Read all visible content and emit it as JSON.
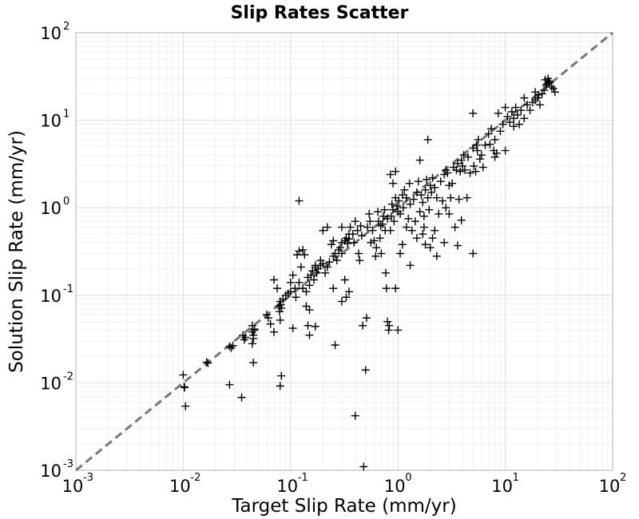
{
  "chart_data": {
    "type": "scatter",
    "title": "Slip Rates Scatter",
    "xlabel": "Target Slip Rate (mm/yr)",
    "ylabel": "Solution Slip Rate (mm/yr)",
    "xscale": "log",
    "yscale": "log",
    "xlim": [
      0.001,
      100
    ],
    "ylim": [
      0.001,
      100
    ],
    "grid": true,
    "marker": "plus",
    "marker_color": "#000000",
    "reference_line": {
      "style": "dashed",
      "color": "#777777",
      "from": [
        0.001,
        0.001
      ],
      "to": [
        100,
        100
      ]
    },
    "x_ticks": [
      {
        "value": 0.001,
        "base": "10",
        "exp": "-3"
      },
      {
        "value": 0.01,
        "base": "10",
        "exp": "-2"
      },
      {
        "value": 0.1,
        "base": "10",
        "exp": "-1"
      },
      {
        "value": 1,
        "base": "10",
        "exp": "0"
      },
      {
        "value": 10,
        "base": "10",
        "exp": "1"
      },
      {
        "value": 100,
        "base": "10",
        "exp": "2"
      }
    ],
    "y_ticks": [
      {
        "value": 0.001,
        "base": "10",
        "exp": "-3"
      },
      {
        "value": 0.01,
        "base": "10",
        "exp": "-2"
      },
      {
        "value": 0.1,
        "base": "10",
        "exp": "-1"
      },
      {
        "value": 1,
        "base": "10",
        "exp": "0"
      },
      {
        "value": 10,
        "base": "10",
        "exp": "1"
      },
      {
        "value": 100,
        "base": "10",
        "exp": "2"
      }
    ],
    "points": [
      [
        0.01,
        0.0123
      ],
      [
        0.0102,
        0.009
      ],
      [
        0.0103,
        0.0088
      ],
      [
        0.0105,
        0.0054
      ],
      [
        0.0165,
        0.0172
      ],
      [
        0.017,
        0.0168
      ],
      [
        0.027,
        0.026
      ],
      [
        0.028,
        0.025
      ],
      [
        0.029,
        0.0265
      ],
      [
        0.027,
        0.0095
      ],
      [
        0.035,
        0.0068
      ],
      [
        0.036,
        0.035
      ],
      [
        0.037,
        0.031
      ],
      [
        0.038,
        0.033
      ],
      [
        0.044,
        0.038
      ],
      [
        0.045,
        0.035
      ],
      [
        0.046,
        0.041
      ],
      [
        0.044,
        0.045
      ],
      [
        0.045,
        0.032
      ],
      [
        0.044,
        0.028
      ],
      [
        0.046,
        0.04
      ],
      [
        0.045,
        0.017
      ],
      [
        0.06,
        0.06
      ],
      [
        0.062,
        0.055
      ],
      [
        0.065,
        0.047
      ],
      [
        0.07,
        0.038
      ],
      [
        0.078,
        0.075
      ],
      [
        0.08,
        0.085
      ],
      [
        0.082,
        0.071
      ],
      [
        0.079,
        0.065
      ],
      [
        0.081,
        0.078
      ],
      [
        0.08,
        0.052
      ],
      [
        0.082,
        0.012
      ],
      [
        0.08,
        0.0092
      ],
      [
        0.085,
        0.09
      ],
      [
        0.09,
        0.1
      ],
      [
        0.095,
        0.105
      ],
      [
        0.1,
        0.11
      ],
      [
        0.1,
        0.14
      ],
      [
        0.105,
        0.17
      ],
      [
        0.11,
        0.12
      ],
      [
        0.112,
        0.095
      ],
      [
        0.115,
        0.29
      ],
      [
        0.12,
        0.14
      ],
      [
        0.125,
        0.21
      ],
      [
        0.13,
        0.12
      ],
      [
        0.135,
        0.29
      ],
      [
        0.14,
        0.11
      ],
      [
        0.145,
        0.16
      ],
      [
        0.15,
        0.13
      ],
      [
        0.155,
        0.17
      ],
      [
        0.16,
        0.19
      ],
      [
        0.165,
        0.15
      ],
      [
        0.17,
        0.22
      ],
      [
        0.17,
        0.21
      ],
      [
        0.175,
        0.18
      ],
      [
        0.18,
        0.2
      ],
      [
        0.19,
        0.22
      ],
      [
        0.19,
        0.25
      ],
      [
        0.2,
        0.23
      ],
      [
        0.21,
        0.18
      ],
      [
        0.22,
        0.21
      ],
      [
        0.12,
        0.32
      ],
      [
        0.13,
        0.33
      ],
      [
        0.14,
        0.075
      ],
      [
        0.145,
        0.045
      ],
      [
        0.15,
        0.035
      ],
      [
        0.15,
        0.068
      ],
      [
        0.07,
        0.15
      ],
      [
        0.075,
        0.12
      ],
      [
        0.105,
        0.042
      ],
      [
        0.12,
        1.2
      ],
      [
        0.17,
        0.044
      ],
      [
        0.2,
        0.55
      ],
      [
        0.22,
        0.6
      ],
      [
        0.23,
        0.24
      ],
      [
        0.24,
        0.38
      ],
      [
        0.25,
        0.28
      ],
      [
        0.25,
        0.42
      ],
      [
        0.26,
        0.3
      ],
      [
        0.27,
        0.25
      ],
      [
        0.28,
        0.33
      ],
      [
        0.29,
        0.35
      ],
      [
        0.3,
        0.3
      ],
      [
        0.3,
        0.4
      ],
      [
        0.3,
        0.6
      ],
      [
        0.32,
        0.42
      ],
      [
        0.33,
        0.45
      ],
      [
        0.34,
        0.39
      ],
      [
        0.35,
        0.44
      ],
      [
        0.35,
        0.5
      ],
      [
        0.36,
        0.6
      ],
      [
        0.38,
        0.5
      ],
      [
        0.39,
        0.4
      ],
      [
        0.4,
        0.7
      ],
      [
        0.42,
        0.55
      ],
      [
        0.43,
        0.3
      ],
      [
        0.44,
        0.25
      ],
      [
        0.45,
        0.62
      ],
      [
        0.46,
        0.48
      ],
      [
        0.25,
        0.12
      ],
      [
        0.26,
        0.027
      ],
      [
        0.4,
        0.0042
      ],
      [
        0.35,
        0.11
      ],
      [
        0.3,
        0.085
      ],
      [
        0.32,
        0.15
      ],
      [
        0.33,
        0.095
      ],
      [
        0.47,
        0.045
      ],
      [
        0.48,
        0.0011
      ],
      [
        0.5,
        0.014
      ],
      [
        0.51,
        0.055
      ],
      [
        0.52,
        0.6
      ],
      [
        0.54,
        0.85
      ],
      [
        0.55,
        0.7
      ],
      [
        0.56,
        0.4
      ],
      [
        0.58,
        0.55
      ],
      [
        0.6,
        0.42
      ],
      [
        0.62,
        0.28
      ],
      [
        0.63,
        0.35
      ],
      [
        0.65,
        0.9
      ],
      [
        0.66,
        0.7
      ],
      [
        0.68,
        0.45
      ],
      [
        0.69,
        0.62
      ],
      [
        0.7,
        0.3
      ],
      [
        0.72,
        0.65
      ],
      [
        0.73,
        0.8
      ],
      [
        0.75,
        0.95
      ],
      [
        0.76,
        0.55
      ],
      [
        0.77,
        0.18
      ],
      [
        0.78,
        0.12
      ],
      [
        0.8,
        0.75
      ],
      [
        0.8,
        0.05
      ],
      [
        0.82,
        0.04
      ],
      [
        0.83,
        0.045
      ],
      [
        0.85,
        0.55
      ],
      [
        0.87,
        0.8
      ],
      [
        0.88,
        1.1
      ],
      [
        0.9,
        0.95
      ],
      [
        0.92,
        0.7
      ],
      [
        0.95,
        1.3
      ],
      [
        0.98,
        1.05
      ],
      [
        1.0,
        0.9
      ],
      [
        1.02,
        1.2
      ],
      [
        1.05,
        0.85
      ],
      [
        1.1,
        1.4
      ],
      [
        1.12,
        1.0
      ],
      [
        1.15,
        1.6
      ],
      [
        1.2,
        0.6
      ],
      [
        1.2,
        1.3
      ],
      [
        1.25,
        0.75
      ],
      [
        1.28,
        1.9
      ],
      [
        1.3,
        1.1
      ],
      [
        1.35,
        0.55
      ],
      [
        1.4,
        1.25
      ],
      [
        1.45,
        0.7
      ],
      [
        1.5,
        1.5
      ],
      [
        1.55,
        2.0
      ],
      [
        1.6,
        0.9
      ],
      [
        0.95,
        0.12
      ],
      [
        1.0,
        0.04
      ],
      [
        1.05,
        0.3
      ],
      [
        1.1,
        0.38
      ],
      [
        1.3,
        0.22
      ],
      [
        1.5,
        0.45
      ],
      [
        0.9,
        1.9
      ],
      [
        0.85,
        2.4
      ],
      [
        0.95,
        2.6
      ],
      [
        1.65,
        1.4
      ],
      [
        1.7,
        1.15
      ],
      [
        1.75,
        0.8
      ],
      [
        1.8,
        1.6
      ],
      [
        1.85,
        2.1
      ],
      [
        1.9,
        1.3
      ],
      [
        1.95,
        0.95
      ],
      [
        2.0,
        1.8
      ],
      [
        2.05,
        1.5
      ],
      [
        2.1,
        2.2
      ],
      [
        2.2,
        1.7
      ],
      [
        2.3,
        1.3
      ],
      [
        2.4,
        0.85
      ],
      [
        2.5,
        2.0
      ],
      [
        2.6,
        1.2
      ],
      [
        2.7,
        2.4
      ],
      [
        2.8,
        1.0
      ],
      [
        1.7,
        0.5
      ],
      [
        1.8,
        0.38
      ],
      [
        2.0,
        0.35
      ],
      [
        2.2,
        0.55
      ],
      [
        2.3,
        0.28
      ],
      [
        1.6,
        3.5
      ],
      [
        1.9,
        6.0
      ],
      [
        1.75,
        0.6
      ],
      [
        2.1,
        0.45
      ],
      [
        2.9,
        2.5
      ],
      [
        3.0,
        1.8
      ],
      [
        3.1,
        1.3
      ],
      [
        3.3,
        2.9
      ],
      [
        3.5,
        2.7
      ],
      [
        3.6,
        3.2
      ],
      [
        3.7,
        1.25
      ],
      [
        3.8,
        2.6
      ],
      [
        3.9,
        3.5
      ],
      [
        4.0,
        3.0
      ],
      [
        4.1,
        4.0
      ],
      [
        4.2,
        2.7
      ],
      [
        4.5,
        3.8
      ],
      [
        4.7,
        2.5
      ],
      [
        5.0,
        4.8
      ],
      [
        5.1,
        3.0
      ],
      [
        5.3,
        2.6
      ],
      [
        5.4,
        5.2
      ],
      [
        5.5,
        4.5
      ],
      [
        5.6,
        6.0
      ],
      [
        5.8,
        3.6
      ],
      [
        6.0,
        4.0
      ],
      [
        6.2,
        2.9
      ],
      [
        6.5,
        5.2
      ],
      [
        7.0,
        7.0
      ],
      [
        7.2,
        5.3
      ],
      [
        5.0,
        0.3
      ],
      [
        3.9,
        0.72
      ],
      [
        3.6,
        0.37
      ],
      [
        2.8,
        2.7
      ],
      [
        3.0,
        0.85
      ],
      [
        4.4,
        1.3
      ],
      [
        3.2,
        1.9
      ],
      [
        3.4,
        0.6
      ],
      [
        2.7,
        0.4
      ],
      [
        7.4,
        8.0
      ],
      [
        7.8,
        4.5
      ],
      [
        8.0,
        6.0
      ],
      [
        8.3,
        4.2
      ],
      [
        8.6,
        12.0
      ],
      [
        9.0,
        7.5
      ],
      [
        9.5,
        9.0
      ],
      [
        10.0,
        4.5
      ],
      [
        10.5,
        11.0
      ],
      [
        11.0,
        9.5
      ],
      [
        11.5,
        12.5
      ],
      [
        12.0,
        10.5
      ],
      [
        12.5,
        14.0
      ],
      [
        13.0,
        11.5
      ],
      [
        14.0,
        13.0
      ],
      [
        15.0,
        10.5
      ],
      [
        16.0,
        15.0
      ],
      [
        17.0,
        13.0
      ],
      [
        18.0,
        16.0
      ],
      [
        19.0,
        17.0
      ],
      [
        20.0,
        18.0
      ],
      [
        21.0,
        15.0
      ],
      [
        22.0,
        20.0
      ],
      [
        23.0,
        22.0
      ],
      [
        24.0,
        25.0
      ],
      [
        25.0,
        30.0
      ],
      [
        25.5,
        28.0
      ],
      [
        26.0,
        27.0
      ],
      [
        27.0,
        24.0
      ],
      [
        28.0,
        23.0
      ],
      [
        29.0,
        21.0
      ],
      [
        24.5,
        26.0
      ],
      [
        23.5,
        29.0
      ],
      [
        12.0,
        8.5
      ],
      [
        8.0,
        3.8
      ],
      [
        15.0,
        18.0
      ],
      [
        19.0,
        21.0
      ],
      [
        5.0,
        12.0
      ],
      [
        10.0,
        14.0
      ],
      [
        13.5,
        9.0
      ],
      [
        20.5,
        19.5
      ]
    ]
  }
}
